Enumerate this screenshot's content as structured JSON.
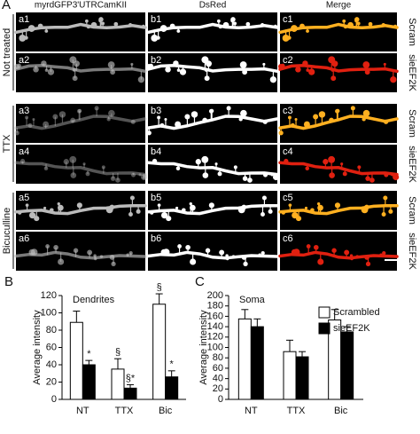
{
  "figure": {
    "panel_label": "A",
    "columns": [
      "myrdGFP3'UTRCamKII",
      "DsRed",
      "Merge"
    ],
    "groups": [
      {
        "label": "Not treated",
        "rows": [
          {
            "labels": [
              "a1",
              "b1",
              "c1"
            ],
            "condition": "Scram"
          },
          {
            "labels": [
              "a2",
              "b2",
              "c2"
            ],
            "condition": "sieEF2K"
          }
        ]
      },
      {
        "label": "TTX",
        "rows": [
          {
            "labels": [
              "a3",
              "b3",
              "c3"
            ],
            "condition": "Scram"
          },
          {
            "labels": [
              "a4",
              "b4",
              "c4"
            ],
            "condition": "sieEF2K"
          }
        ]
      },
      {
        "label": "Bicuculline",
        "rows": [
          {
            "labels": [
              "a5",
              "b5",
              "c5"
            ],
            "condition": "Scram"
          },
          {
            "labels": [
              "a6",
              "b6",
              "c6"
            ],
            "condition": "sieEF2K"
          }
        ]
      }
    ]
  },
  "chart_data": [
    {
      "type": "bar",
      "panel_label": "B",
      "title": "Dendrites",
      "y_label": "Average intensity",
      "categories": [
        "NT",
        "TTX",
        "Bic"
      ],
      "series": [
        {
          "name": "Scrambled",
          "color": "#ffffff",
          "values": [
            89,
            35,
            110
          ],
          "errors": [
            13,
            12,
            12
          ],
          "annotations": [
            null,
            "§",
            "§"
          ]
        },
        {
          "name": "sieEF2K",
          "color": "#000000",
          "values": [
            40,
            13,
            26
          ],
          "errors": [
            5,
            4,
            7
          ],
          "annotations": [
            "*",
            "§*",
            "*"
          ]
        }
      ],
      "ylim": [
        0,
        120
      ],
      "yticks": [
        0,
        20,
        40,
        60,
        80,
        100,
        120
      ],
      "legend": false
    },
    {
      "type": "bar",
      "panel_label": "C",
      "title": "Soma",
      "y_label": "Average intensity",
      "categories": [
        "NT",
        "TTX",
        "Bic"
      ],
      "series": [
        {
          "name": "Scrambled",
          "color": "#ffffff",
          "values": [
            155,
            92,
            153
          ],
          "errors": [
            18,
            22,
            20
          ]
        },
        {
          "name": "sieEF2K",
          "color": "#000000",
          "values": [
            140,
            82,
            130
          ],
          "errors": [
            15,
            10,
            10
          ]
        }
      ],
      "ylim": [
        0,
        200
      ],
      "yticks": [
        0,
        20,
        40,
        60,
        80,
        100,
        120,
        140,
        160,
        180,
        200
      ],
      "legend": "upper right"
    }
  ]
}
